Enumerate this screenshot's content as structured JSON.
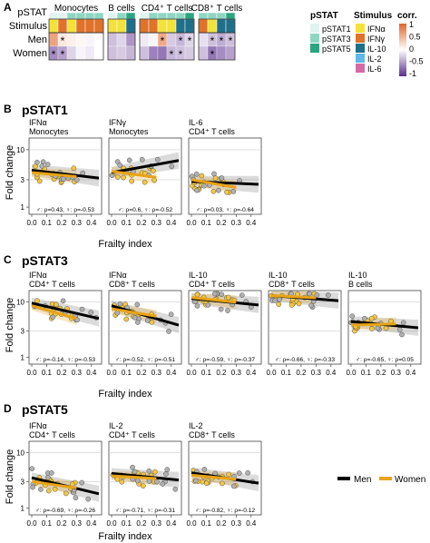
{
  "panelA": {
    "letter": "A",
    "row_labels": [
      "pSTAT",
      "Stimulus",
      "Men",
      "Women"
    ],
    "groups": [
      {
        "title": "Monocytes",
        "cols": 6
      },
      {
        "title": "B cells",
        "cols": 3
      },
      {
        "title": "CD4⁺ T cells",
        "cols": 6
      },
      {
        "title": "CD8⁺ T cells",
        "cols": 4
      }
    ],
    "pstat_codes": [
      "p1",
      "p1",
      "p3",
      "p3",
      "p3",
      "p3",
      "p1",
      "p3",
      "p5",
      "p1",
      "p3",
      "p3",
      "p3",
      "p3",
      "p5",
      "p3",
      "p3",
      "p3",
      "p5"
    ],
    "stim_codes": [
      "a",
      "g",
      "a",
      "g",
      "g",
      "g",
      "a",
      "a",
      "b",
      "g",
      "g",
      "a",
      "a",
      "b",
      "b",
      "g",
      "a",
      "b",
      "b"
    ],
    "men_values": [
      0.6,
      0.15,
      0.1,
      0.05,
      -0.05,
      0.0,
      -0.3,
      -0.2,
      -0.5,
      -0.1,
      -0.05,
      0.55,
      -0.25,
      -0.35,
      -0.2,
      -0.15,
      -0.3,
      -0.4,
      -0.3
    ],
    "women_values": [
      -0.55,
      -0.45,
      -0.2,
      -0.05,
      -0.1,
      0.0,
      -0.3,
      -0.25,
      -0.35,
      -0.3,
      -0.6,
      -0.65,
      -0.35,
      -0.3,
      -0.25,
      -0.3,
      -0.65,
      -0.55,
      -0.45
    ],
    "men_stars": [
      1,
      17,
      11,
      13,
      14,
      16,
      17,
      18
    ],
    "women_stars": [
      0,
      1,
      12,
      13,
      16
    ],
    "star": "*",
    "legend_pstat": {
      "title": "pSTAT",
      "items": [
        {
          "label": "pSTAT1",
          "color": "#dff3ef"
        },
        {
          "label": "pSTAT3",
          "color": "#8fd6c2"
        },
        {
          "label": "pSTAT5",
          "color": "#2aa57f"
        }
      ]
    },
    "legend_stimulus": {
      "title": "Stimulus",
      "items": [
        {
          "label": "IFNα",
          "color": "#f2e23a"
        },
        {
          "label": "IFNγ",
          "color": "#e0722a"
        },
        {
          "label": "IL-10",
          "color": "#1f6f8b"
        },
        {
          "label": "IL-2",
          "color": "#5fb8e8"
        },
        {
          "label": "IL-6",
          "color": "#d56aa8"
        }
      ]
    },
    "legend_corr": {
      "title": "corr.",
      "ticks": [
        "1",
        "0.5",
        "0",
        "-0.5",
        "-1"
      ]
    }
  },
  "colors": {
    "men": "#000000",
    "women": "#e8a317",
    "women_pt": "#f2c744",
    "pos": "#e0662a",
    "neg": "#5b2d8e"
  },
  "chart_data": [
    {
      "type": "scatter",
      "panel": "B",
      "panel_title": "pSTAT1",
      "stimulus": "IFNα",
      "cells": "Monocytes",
      "xlabel": "Frailty index",
      "ylabel": "Fold change",
      "y_scale": "log",
      "ylim": [
        1,
        10
      ],
      "xlim": [
        0,
        0.45
      ],
      "x_ticks": [
        "0.0",
        "0.1",
        "0.2",
        "0.3",
        "0.4"
      ],
      "y_ticks": [
        "1",
        "3",
        "10"
      ],
      "men_line": [
        [
          0.0,
          4.4
        ],
        [
          0.45,
          3.2
        ]
      ],
      "women_line": [
        [
          0.0,
          4.0
        ],
        [
          0.3,
          3.4
        ]
      ],
      "rho_text": "♂: ρ=0.43, ♀: ρ=-0.53"
    },
    {
      "type": "scatter",
      "panel": "B",
      "stimulus": "IFNγ",
      "cells": "Monocytes",
      "y_scale": "log",
      "ylim": [
        1,
        10
      ],
      "xlim": [
        0,
        0.45
      ],
      "men_line": [
        [
          0.0,
          4.0
        ],
        [
          0.45,
          6.5
        ]
      ],
      "women_line": [
        [
          0.0,
          4.2
        ],
        [
          0.3,
          3.3
        ]
      ],
      "rho_text": "♂: ρ=0.6, ♀: ρ=-0.52"
    },
    {
      "type": "scatter",
      "panel": "B",
      "stimulus": "IL-6",
      "cells": "CD4⁺ T cells",
      "y_scale": "log",
      "ylim": [
        1,
        10
      ],
      "xlim": [
        0,
        0.45
      ],
      "men_line": [
        [
          0.0,
          2.8
        ],
        [
          0.45,
          2.5
        ]
      ],
      "women_line": [
        [
          0.0,
          3.0
        ],
        [
          0.3,
          2.2
        ]
      ],
      "rho_text": "♂: ρ=0.03, ♀: ρ=-0.64"
    },
    {
      "type": "scatter",
      "panel": "C",
      "panel_title": "pSTAT3",
      "stimulus": "IFNα",
      "cells": "CD4⁺ T cells",
      "y_scale": "log",
      "ylim": [
        1,
        10
      ],
      "xlim": [
        0,
        0.45
      ],
      "men_line": [
        [
          0.0,
          9.5
        ],
        [
          0.45,
          5.0
        ]
      ],
      "women_line": [
        [
          0.0,
          8.5
        ],
        [
          0.3,
          5.0
        ]
      ],
      "rho_text": "♂: ρ=-0.14, ♀: ρ=-0.53"
    },
    {
      "type": "scatter",
      "panel": "C",
      "stimulus": "IFNα",
      "cells": "CD8⁺ T cells",
      "y_scale": "log",
      "ylim": [
        1,
        10
      ],
      "xlim": [
        0,
        0.45
      ],
      "men_line": [
        [
          0.0,
          8.5
        ],
        [
          0.45,
          3.8
        ]
      ],
      "women_line": [
        [
          0.0,
          7.5
        ],
        [
          0.3,
          5.5
        ]
      ],
      "rho_text": "♂: ρ=-0.52, ♀: ρ=-0.51"
    },
    {
      "type": "scatter",
      "panel": "C",
      "stimulus": "IL-10",
      "cells": "CD4⁺ T cells",
      "y_scale": "log",
      "ylim": [
        1,
        10
      ],
      "xlim": [
        0,
        0.45
      ],
      "men_line": [
        [
          0.0,
          11.5
        ],
        [
          0.45,
          8.8
        ]
      ],
      "women_line": [
        [
          0.0,
          12.0
        ],
        [
          0.3,
          9.8
        ]
      ],
      "rho_text": "♂: ρ=-0.59, ♀: ρ=-0.37"
    },
    {
      "type": "scatter",
      "panel": "C",
      "stimulus": "IL-10",
      "cells": "CD8⁺ T cells",
      "y_scale": "log",
      "ylim": [
        1,
        10
      ],
      "xlim": [
        0,
        0.45
      ],
      "men_line": [
        [
          0.0,
          13.0
        ],
        [
          0.45,
          10.5
        ]
      ],
      "women_line": [
        [
          0.0,
          13.0
        ],
        [
          0.3,
          11.8
        ]
      ],
      "rho_text": "♂: ρ=-0.66, ♀: ρ=-0.33"
    },
    {
      "type": "scatter",
      "panel": "C",
      "stimulus": "IL-10",
      "cells": "B cells",
      "y_scale": "log",
      "ylim": [
        1,
        10
      ],
      "xlim": [
        0,
        0.45
      ],
      "men_line": [
        [
          0.0,
          4.4
        ],
        [
          0.45,
          3.4
        ]
      ],
      "women_line": [
        [
          0.0,
          3.8
        ],
        [
          0.3,
          4.0
        ]
      ],
      "rho_text": "♂: ρ=-0.65, ♀: ρ=0.05"
    },
    {
      "type": "scatter",
      "panel": "D",
      "panel_title": "pSTAT5",
      "stimulus": "IFNα",
      "cells": "CD4⁺ T cells",
      "y_scale": "log",
      "ylim": [
        1,
        10
      ],
      "xlim": [
        0,
        0.45
      ],
      "men_line": [
        [
          0.0,
          3.5
        ],
        [
          0.45,
          1.8
        ]
      ],
      "women_line": [
        [
          0.0,
          3.0
        ],
        [
          0.3,
          2.3
        ]
      ],
      "rho_text": "♂: ρ=-0.69, ♀: ρ=-0.26"
    },
    {
      "type": "scatter",
      "panel": "D",
      "stimulus": "IL-2",
      "cells": "CD4⁺ T cells",
      "y_scale": "log",
      "ylim": [
        1,
        10
      ],
      "xlim": [
        0,
        0.45
      ],
      "men_line": [
        [
          0.0,
          4.2
        ],
        [
          0.45,
          3.2
        ]
      ],
      "women_line": [
        [
          0.0,
          3.8
        ],
        [
          0.3,
          3.4
        ]
      ],
      "rho_text": "♂: ρ=-0.71, ♀: ρ=-0.31"
    },
    {
      "type": "scatter",
      "panel": "D",
      "stimulus": "IL-2",
      "cells": "CD8⁺ T cells",
      "y_scale": "log",
      "ylim": [
        1,
        10
      ],
      "xlim": [
        0,
        0.45
      ],
      "men_line": [
        [
          0.0,
          4.3
        ],
        [
          0.45,
          2.8
        ]
      ],
      "women_line": [
        [
          0.0,
          3.9
        ],
        [
          0.3,
          3.3
        ]
      ],
      "rho_text": "♂: ρ=-0.82, ♀: ρ=-0.12"
    }
  ],
  "labels": {
    "letter_B": "B",
    "letter_C": "C",
    "letter_D": "D",
    "title_B": "pSTAT1",
    "title_C": "pSTAT3",
    "title_D": "pSTAT5",
    "ylabel": "Fold change",
    "xlabel": "Frailty index",
    "x_ticks": [
      "0.0",
      "0.1",
      "0.2",
      "0.3",
      "0.4"
    ],
    "y_ticks": [
      "1",
      "3",
      "10"
    ],
    "legend_men": "Men",
    "legend_women": "Women"
  }
}
